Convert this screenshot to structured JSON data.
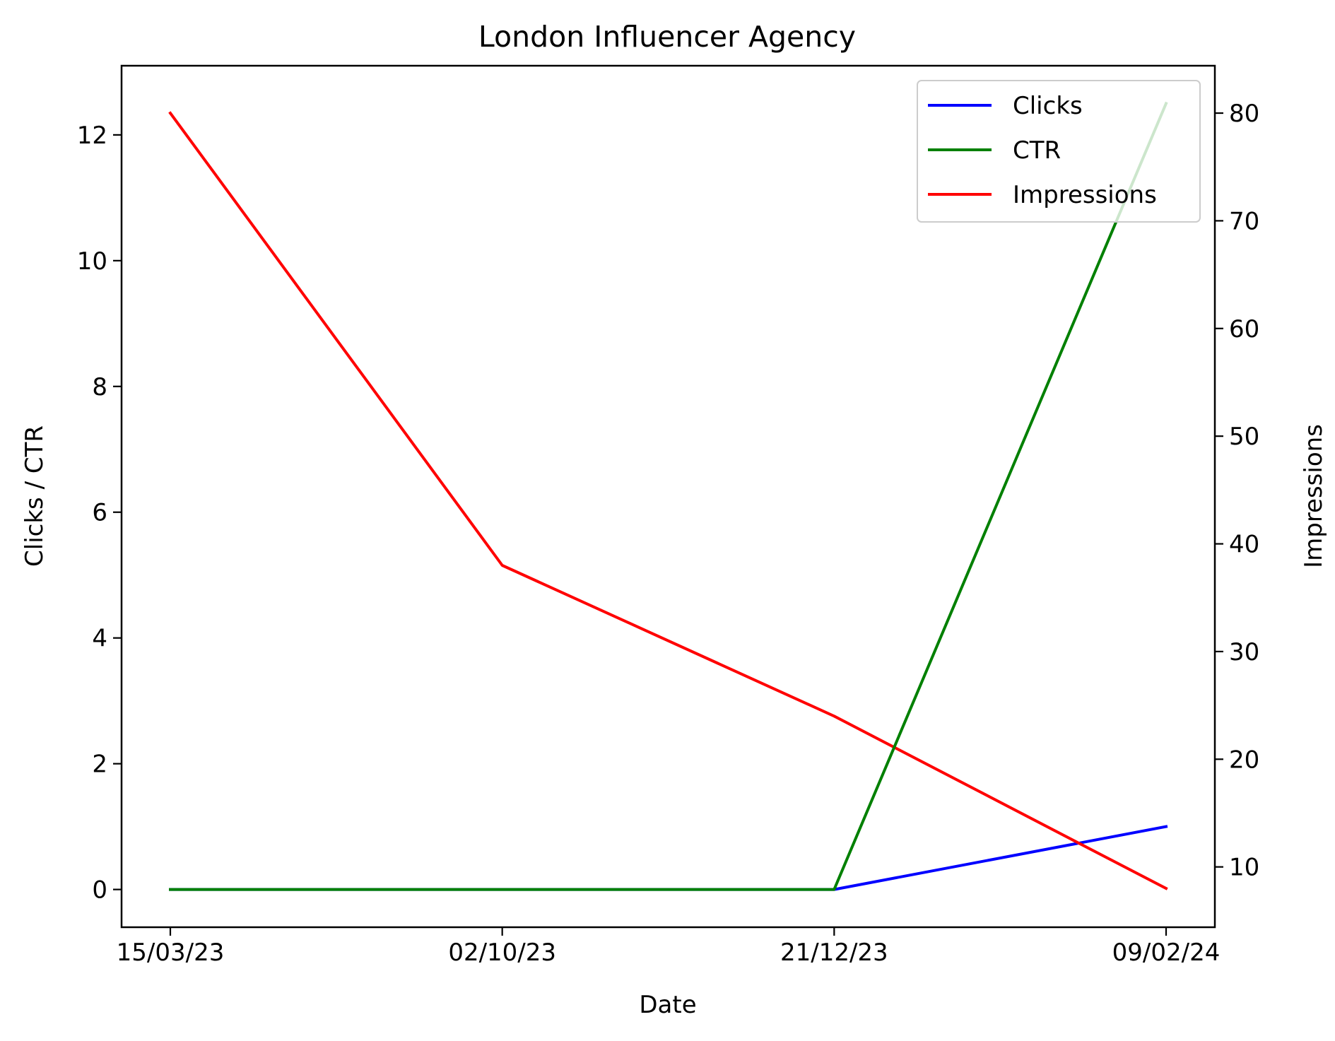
{
  "chart_data": {
    "type": "line",
    "title": "London Influencer Agency",
    "xlabel": "Date",
    "ylabel_left": "Clicks / CTR",
    "ylabel_right": "Impressions",
    "categories": [
      "15/03/23",
      "02/10/23",
      "21/12/23",
      "09/02/24"
    ],
    "ylim_left": [
      -0.6,
      13.1
    ],
    "ylim_right": [
      4.4,
      84.4
    ],
    "yticks_left": [
      0,
      2,
      4,
      6,
      8,
      10,
      12
    ],
    "yticks_right": [
      10,
      20,
      30,
      40,
      50,
      60,
      70,
      80
    ],
    "grid": false,
    "legend_position": "top-right",
    "series": [
      {
        "name": "Clicks",
        "axis": "left",
        "color": "#0000ff",
        "values": [
          0,
          0,
          0,
          1
        ]
      },
      {
        "name": "CTR",
        "axis": "left",
        "color": "#008000",
        "values": [
          0,
          0,
          0,
          12.5
        ]
      },
      {
        "name": "Impressions",
        "axis": "right",
        "color": "#ff0000",
        "values": [
          80,
          38,
          24,
          8
        ]
      }
    ]
  }
}
